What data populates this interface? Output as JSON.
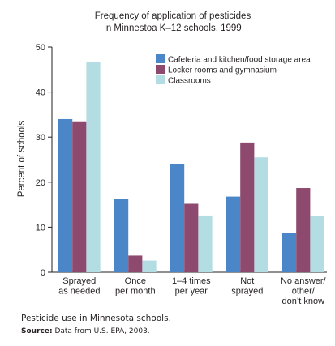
{
  "chart_data": {
    "type": "bar",
    "title": [
      "Frequency of application of pesticides",
      "in Minnestoa K–12 schools, 1999"
    ],
    "ylabel": "Percent of schools",
    "ylim": [
      0,
      50
    ],
    "yticks": [
      0,
      10,
      20,
      30,
      40,
      50
    ],
    "categories": [
      [
        "Sprayed",
        "as needed"
      ],
      [
        "Once",
        "per month"
      ],
      [
        "1–4 times",
        "per year"
      ],
      [
        "Not",
        "sprayed"
      ],
      [
        "No answer/",
        "other/",
        "don’t know"
      ]
    ],
    "series": [
      {
        "name": "Cafeteria and kitchen/food storage area",
        "color": "#4a86c8",
        "values": [
          34,
          16.3,
          24,
          16.8,
          8.7
        ]
      },
      {
        "name": "Locker rooms and gymnasium",
        "color": "#8e4a6e",
        "values": [
          33.5,
          3.7,
          15.2,
          28.8,
          18.7
        ]
      },
      {
        "name": "Classrooms",
        "color": "#b3dce3",
        "values": [
          46.6,
          2.6,
          12.6,
          25.5,
          12.5
        ]
      }
    ],
    "legend_position": "top-right",
    "grid": false
  },
  "caption": "Pesticide use in Minnesota schools.",
  "source_label": "Source:",
  "source_text": "Data from U.S. EPA, 2003."
}
